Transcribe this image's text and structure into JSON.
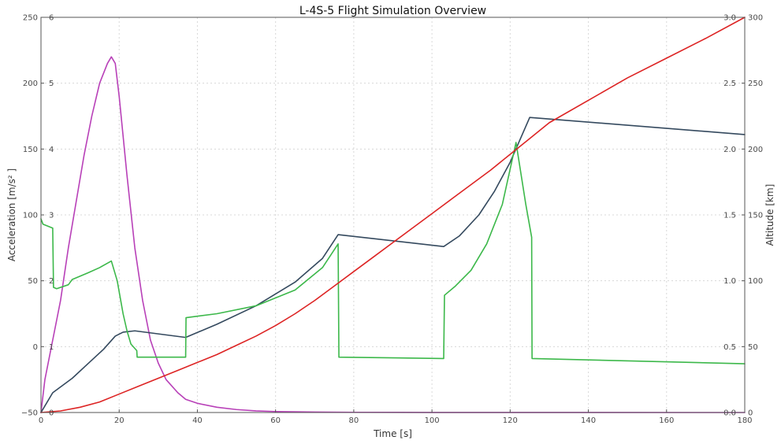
{
  "chart_data": {
    "type": "line",
    "title": "L-4S-5 Flight Simulation Overview",
    "xlabel": "Time [s]",
    "xlim": [
      0,
      180
    ],
    "x_ticks": [
      "0",
      "20",
      "40",
      "60",
      "80",
      "100",
      "120",
      "140",
      "160",
      "180"
    ],
    "y_left_outer": {
      "label": "Acceleration [m/s² ]",
      "ylim": [
        -50,
        250
      ],
      "ticks": [
        "−50",
        "0",
        "50",
        "100",
        "150",
        "200",
        "250"
      ]
    },
    "y_left_inner": {
      "ylim": [
        0,
        6
      ],
      "ticks": [
        "0",
        "1",
        "2",
        "3",
        "4",
        "5",
        "6"
      ]
    },
    "y_right_inner": {
      "ylim": [
        0.0,
        3.0
      ],
      "ticks": [
        "0.0",
        "0.5",
        "1.0",
        "1.5",
        "2.0",
        "2.5",
        "3.0"
      ]
    },
    "y_right_outer": {
      "label": "Altitude [km]",
      "ylim": [
        0,
        300
      ],
      "ticks": [
        "0",
        "50",
        "100",
        "150",
        "200",
        "250",
        "300"
      ]
    },
    "grid": true,
    "series": [
      {
        "color": "#b840b8",
        "axis": "y_left_inner",
        "points": [
          [
            0,
            0
          ],
          [
            1,
            0.5
          ],
          [
            3,
            1.1
          ],
          [
            5,
            1.7
          ],
          [
            7,
            2.5
          ],
          [
            9,
            3.2
          ],
          [
            11,
            3.9
          ],
          [
            13,
            4.5
          ],
          [
            15,
            5.0
          ],
          [
            17,
            5.3
          ],
          [
            18,
            5.4
          ],
          [
            19,
            5.3
          ],
          [
            20,
            4.8
          ],
          [
            22,
            3.6
          ],
          [
            24,
            2.5
          ],
          [
            26,
            1.7
          ],
          [
            28,
            1.1
          ],
          [
            30,
            0.75
          ],
          [
            32,
            0.5
          ],
          [
            35,
            0.3
          ],
          [
            37,
            0.2
          ],
          [
            40,
            0.14
          ],
          [
            45,
            0.08
          ],
          [
            50,
            0.045
          ],
          [
            55,
            0.025
          ],
          [
            60,
            0.015
          ],
          [
            70,
            0.007
          ],
          [
            80,
            0.003
          ],
          [
            100,
            0.001
          ],
          [
            180,
            0
          ]
        ]
      },
      {
        "color": "#34495e",
        "axis": "y_left_outer",
        "points": [
          [
            0,
            -50
          ],
          [
            3,
            -35
          ],
          [
            8,
            -24
          ],
          [
            12,
            -13
          ],
          [
            16,
            -2
          ],
          [
            19,
            8
          ],
          [
            21,
            11
          ],
          [
            24,
            12
          ],
          [
            37,
            7
          ],
          [
            45,
            17
          ],
          [
            55,
            31
          ],
          [
            65,
            49
          ],
          [
            72,
            67
          ],
          [
            76,
            85
          ],
          [
            103,
            76
          ],
          [
            107,
            84
          ],
          [
            112,
            100
          ],
          [
            116,
            118
          ],
          [
            120,
            140
          ],
          [
            125,
            174
          ],
          [
            180,
            161
          ]
        ]
      },
      {
        "color": "#3cb84a",
        "axis": "y_left_outer",
        "points": [
          [
            0,
            97
          ],
          [
            0.5,
            93
          ],
          [
            3,
            90
          ],
          [
            3.2,
            45
          ],
          [
            4,
            44
          ],
          [
            7,
            47
          ],
          [
            8,
            51
          ],
          [
            12,
            56
          ],
          [
            15,
            60
          ],
          [
            18,
            65
          ],
          [
            19.5,
            50
          ],
          [
            21,
            25
          ],
          [
            22,
            12
          ],
          [
            23,
            2
          ],
          [
            24.5,
            -3
          ],
          [
            24.6,
            -8
          ],
          [
            37,
            -8
          ],
          [
            37.1,
            22
          ],
          [
            45,
            25
          ],
          [
            55,
            31
          ],
          [
            65,
            43
          ],
          [
            72,
            60
          ],
          [
            76,
            78
          ],
          [
            76.2,
            -8
          ],
          [
            103,
            -9
          ],
          [
            103.2,
            39
          ],
          [
            106,
            46
          ],
          [
            110,
            58
          ],
          [
            114,
            78
          ],
          [
            118,
            108
          ],
          [
            121.5,
            155
          ],
          [
            124,
            108
          ],
          [
            125.5,
            83
          ],
          [
            125.6,
            -9
          ],
          [
            180,
            -13
          ]
        ]
      },
      {
        "color": "#dd2424",
        "axis": "y_right_outer",
        "points": [
          [
            0,
            0
          ],
          [
            5,
            1.2
          ],
          [
            10,
            4
          ],
          [
            15,
            8
          ],
          [
            20,
            14
          ],
          [
            25,
            20
          ],
          [
            30,
            26
          ],
          [
            35,
            32
          ],
          [
            40,
            38
          ],
          [
            45,
            44
          ],
          [
            50,
            51
          ],
          [
            55,
            58
          ],
          [
            60,
            66
          ],
          [
            65,
            75
          ],
          [
            70,
            85
          ],
          [
            75,
            96
          ],
          [
            80,
            107
          ],
          [
            85,
            118
          ],
          [
            90,
            129
          ],
          [
            95,
            140
          ],
          [
            100,
            151
          ],
          [
            105,
            162
          ],
          [
            110,
            173
          ],
          [
            115,
            184
          ],
          [
            120,
            196
          ],
          [
            125,
            208
          ],
          [
            130,
            220
          ],
          [
            140,
            237
          ],
          [
            150,
            254
          ],
          [
            160,
            269
          ],
          [
            170,
            284
          ],
          [
            180,
            300
          ]
        ]
      }
    ]
  }
}
